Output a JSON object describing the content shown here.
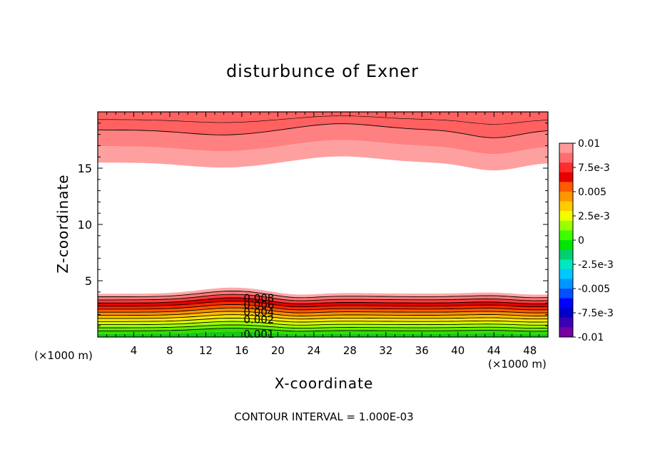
{
  "chart_data": {
    "type": "heatmap",
    "title": "disturbunce of Exner",
    "xlabel": "X-coordinate",
    "ylabel": "Z-coordinate",
    "x_unit_label": "(×1000 m)",
    "xlim": [
      0,
      50
    ],
    "ylim": [
      0,
      20
    ],
    "x_ticks": [
      "4",
      "8",
      "12",
      "16",
      "20",
      "24",
      "28",
      "32",
      "36",
      "40",
      "44",
      "48"
    ],
    "y_ticks": [
      "5",
      "10",
      "15"
    ],
    "contour_labels": [
      "0.008",
      "0.006",
      "0.004",
      "0.002",
      "0.001"
    ],
    "colorbar": {
      "tick_labels": [
        "0.01",
        "7.5e-3",
        "0.005",
        "2.5e-3",
        "0",
        "-2.5e-3",
        "-0.005",
        "-7.5e-3",
        "-0.01"
      ],
      "colors": [
        "#ff9a9a",
        "#ff6e6e",
        "#ff2d2d",
        "#e80000",
        "#ff5a00",
        "#ff9600",
        "#ffcc00",
        "#f0ff00",
        "#9aff00",
        "#3cff00",
        "#00e600",
        "#00d070",
        "#00e8c0",
        "#00c8ff",
        "#0096ff",
        "#0050ff",
        "#0000ff",
        "#0000c8",
        "#3c00b4",
        "#7800a0"
      ]
    },
    "note": "CONTOUR INTERVAL = 1.000E-03",
    "lower_layer_colors": [
      "#14c814",
      "#32dc00",
      "#64f000",
      "#a0ff00",
      "#d4ff00",
      "#ffe600",
      "#ffc000",
      "#ff9000",
      "#ff5a00",
      "#ff2800",
      "#e60000",
      "#ff3c3c",
      "#ff7878",
      "#ffa8a8"
    ],
    "upper_layer_colors": [
      "#ffa0a0",
      "#ff8080",
      "#ff6060"
    ]
  }
}
